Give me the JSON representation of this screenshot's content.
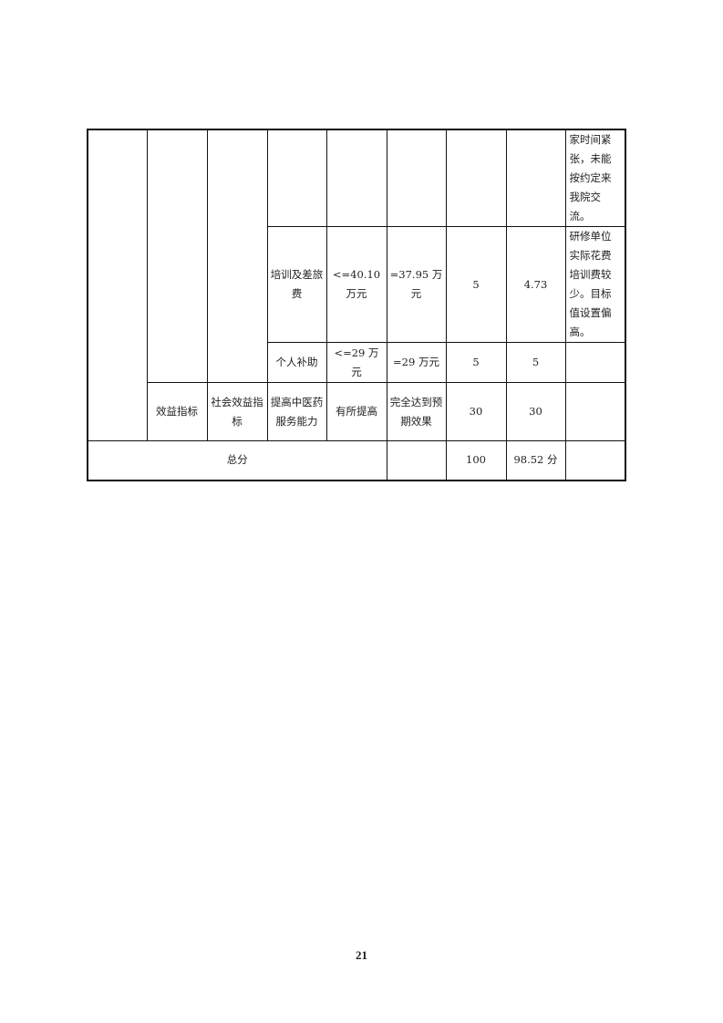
{
  "table": {
    "row1": {
      "note": "家时间紧张，未能按约定来我院交流。"
    },
    "row2": {
      "indicator": "培训及差旅费",
      "target": "<=40.10 万元",
      "actual": "=37.95 万元",
      "weight": "5",
      "score": "4.73",
      "note": "研修单位实际花费培训费较少。目标值设置偏高。"
    },
    "row3": {
      "indicator": "个人补助",
      "target": "<=29 万元",
      "actual": "=29 万元",
      "weight": "5",
      "score": "5",
      "note": ""
    },
    "row4": {
      "level1": "效益指标",
      "level2": "社会效益指标",
      "indicator": "提高中医药服务能力",
      "target": "有所提高",
      "actual": "完全达到预期效果",
      "weight": "30",
      "score": "30",
      "note": ""
    },
    "total": {
      "label": "总分",
      "actual": "",
      "weight": "100",
      "score": "98.52 分",
      "note": ""
    }
  },
  "page_number": "21"
}
